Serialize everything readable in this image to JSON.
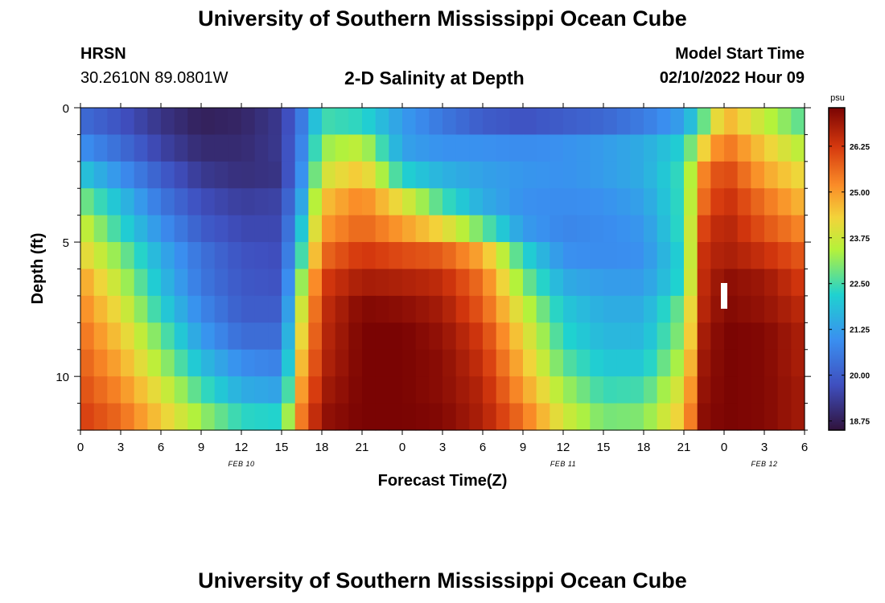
{
  "header": {
    "title": "University of Southern Mississippi Ocean Cube",
    "station_id": "HRSN",
    "station_coords": "30.2610N  89.0801W",
    "plot_title": "2-D Salinity at Depth",
    "model_start_label": "Model Start Time",
    "model_start_value": "02/10/2022 Hour 09"
  },
  "footer": {
    "title": "University of Southern Mississippi Ocean Cube"
  },
  "chart_data": {
    "type": "heatmap",
    "title": "2-D Salinity at Depth",
    "xlabel": "Forecast Time(Z)",
    "ylabel": "Depth (ft)",
    "x_range_hours": [
      0,
      54
    ],
    "y_range_ft": [
      0,
      12
    ],
    "x_ticks": [
      "0",
      "3",
      "6",
      "9",
      "12",
      "15",
      "18",
      "21",
      "0",
      "3",
      "6",
      "9",
      "12",
      "15",
      "18",
      "21",
      "0",
      "3",
      "6"
    ],
    "y_ticks": [
      "0",
      "5",
      "10"
    ],
    "date_labels": [
      {
        "label": "FEB 10",
        "hour": 12
      },
      {
        "label": "FEB 11",
        "hour": 36
      },
      {
        "label": "FEB 12",
        "hour": 51
      }
    ],
    "colorbar": {
      "unit": "psu",
      "min": 18.5,
      "max": 27.3,
      "ticks": [
        "18.75",
        "20.00",
        "21.25",
        "22.50",
        "23.75",
        "25.00",
        "26.25"
      ]
    },
    "depth_bins_ft": [
      0.5,
      1.5,
      2.5,
      3.5,
      4.5,
      5.5,
      6.5,
      7.5,
      8.5,
      9.5,
      10.5,
      11.5
    ],
    "time_hours": [
      0,
      3,
      6,
      9,
      12,
      15,
      16.5,
      18,
      21,
      24,
      27,
      30,
      33,
      36,
      39,
      42,
      45,
      46.5,
      48,
      51,
      54
    ],
    "salinity": [
      [
        20.3,
        19.8,
        19.2,
        18.8,
        18.9,
        19.3,
        20.6,
        22.5,
        22.3,
        21.2,
        20.5,
        20.0,
        19.8,
        20.0,
        20.2,
        20.6,
        21.3,
        22.8,
        24.8,
        23.6,
        22.6
      ],
      [
        21.0,
        20.3,
        19.5,
        19.0,
        19.0,
        19.3,
        20.8,
        23.2,
        23.6,
        21.3,
        21.0,
        21.0,
        20.9,
        21.0,
        21.2,
        21.5,
        22.2,
        24.3,
        25.6,
        24.4,
        23.4
      ],
      [
        22.0,
        21.0,
        20.0,
        19.3,
        19.1,
        19.2,
        21.0,
        23.8,
        24.5,
        22.2,
        21.6,
        21.3,
        21.1,
        21.0,
        21.2,
        21.5,
        22.5,
        25.3,
        26.2,
        24.9,
        24.1
      ],
      [
        23.0,
        21.8,
        20.5,
        19.7,
        19.4,
        19.5,
        21.4,
        24.5,
        25.3,
        24.0,
        22.5,
        21.5,
        21.0,
        20.9,
        21.0,
        21.3,
        22.5,
        25.6,
        26.5,
        25.5,
        24.6
      ],
      [
        23.8,
        22.3,
        21.0,
        20.0,
        19.6,
        19.6,
        22.0,
        25.0,
        25.7,
        25.0,
        24.2,
        22.8,
        21.2,
        20.8,
        20.9,
        21.1,
        22.5,
        26.1,
        26.7,
        25.9,
        25.2
      ],
      [
        24.3,
        23.0,
        21.5,
        20.4,
        19.8,
        19.7,
        22.5,
        25.6,
        26.3,
        26.0,
        25.8,
        24.8,
        22.3,
        21.0,
        20.9,
        21.0,
        22.3,
        26.4,
        26.8,
        26.4,
        25.8
      ],
      [
        25.0,
        23.5,
        21.8,
        20.5,
        19.9,
        19.8,
        23.2,
        26.2,
        26.8,
        26.7,
        26.5,
        25.5,
        23.0,
        21.5,
        21.2,
        21.2,
        22.4,
        26.5,
        27.1,
        26.9,
        26.2
      ],
      [
        25.3,
        24.0,
        22.2,
        20.8,
        20.0,
        20.0,
        23.8,
        26.4,
        27.2,
        27.1,
        26.8,
        25.8,
        23.7,
        22.0,
        21.5,
        21.5,
        23.0,
        26.6,
        27.2,
        27.0,
        26.5
      ],
      [
        25.6,
        24.4,
        22.8,
        21.2,
        20.3,
        20.3,
        24.2,
        26.5,
        27.3,
        27.3,
        27.0,
        26.2,
        24.2,
        22.3,
        21.7,
        21.7,
        23.2,
        26.8,
        27.3,
        27.2,
        26.7
      ],
      [
        25.8,
        24.8,
        23.3,
        21.8,
        20.9,
        20.7,
        24.6,
        26.6,
        27.3,
        27.3,
        27.1,
        26.4,
        24.6,
        22.7,
        22.0,
        22.0,
        23.6,
        26.9,
        27.3,
        27.2,
        26.7
      ],
      [
        26.0,
        25.2,
        23.9,
        22.5,
        21.5,
        21.3,
        25.0,
        26.8,
        27.3,
        27.3,
        27.1,
        26.6,
        25.0,
        23.3,
        22.4,
        22.5,
        24.1,
        27.0,
        27.3,
        27.2,
        26.8
      ],
      [
        26.2,
        25.6,
        24.4,
        23.2,
        22.3,
        22.2,
        25.4,
        27.0,
        27.3,
        27.3,
        27.2,
        26.7,
        25.5,
        23.8,
        22.9,
        23.0,
        24.5,
        27.1,
        27.3,
        27.2,
        26.8
      ]
    ]
  }
}
